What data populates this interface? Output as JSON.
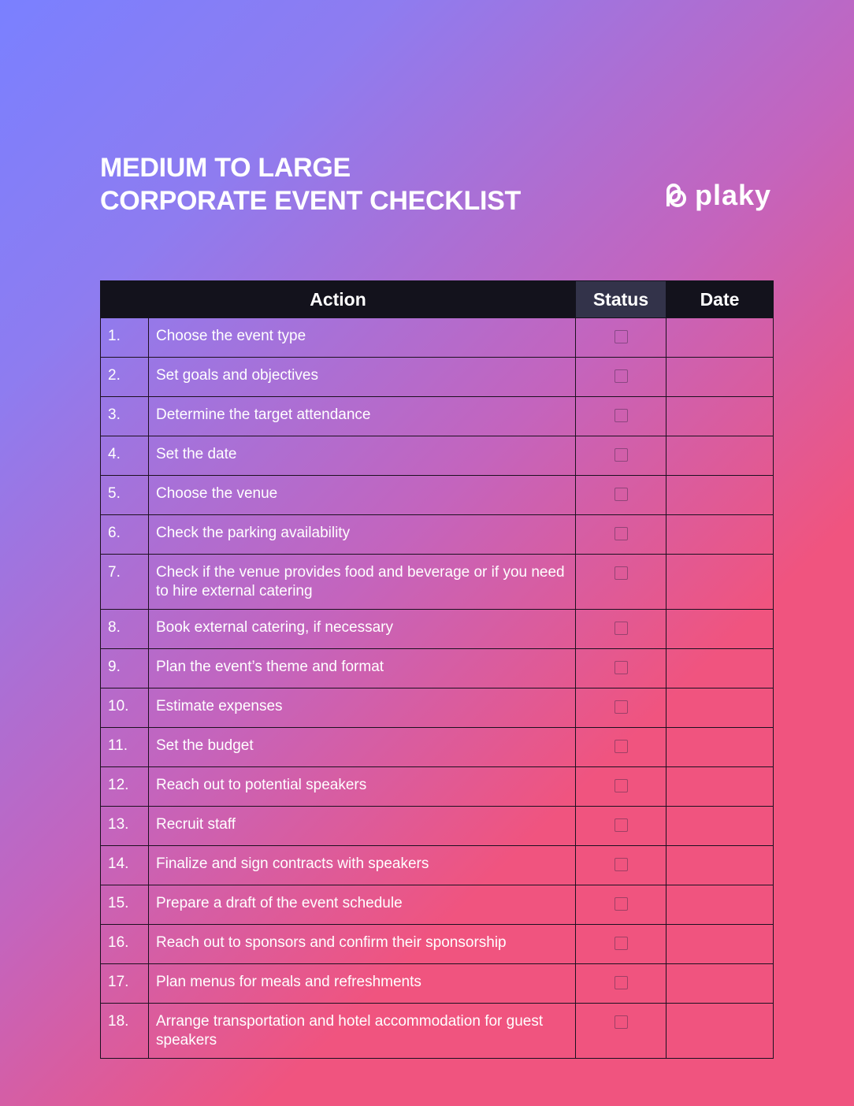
{
  "header": {
    "title_lines": [
      "MEDIUM TO LARGE",
      "CORPORATE EVENT CHECKLIST"
    ],
    "logo": "plaky"
  },
  "table": {
    "columns": [
      "Action",
      "Status",
      "Date"
    ],
    "rows": [
      {
        "number": "1.",
        "action": "Choose the event type"
      },
      {
        "number": "2.",
        "action": "Set goals and objectives"
      },
      {
        "number": "3.",
        "action": "Determine the target attendance"
      },
      {
        "number": "4.",
        "action": "Set the date"
      },
      {
        "number": "5.",
        "action": "Choose the venue"
      },
      {
        "number": "6.",
        "action": "Check the parking availability"
      },
      {
        "number": "7.",
        "action": "Check if the venue provides food and beverage or if you need to hire external catering"
      },
      {
        "number": "8.",
        "action": "Book external catering, if necessary"
      },
      {
        "number": "9.",
        "action": "Plan the event’s theme and format"
      },
      {
        "number": "10.",
        "action": "Estimate expenses"
      },
      {
        "number": "11.",
        "action": "Set the budget"
      },
      {
        "number": "12.",
        "action": "Reach out to potential speakers"
      },
      {
        "number": "13.",
        "action": "Recruit staff"
      },
      {
        "number": "14.",
        "action": "Finalize and sign contracts with speakers"
      },
      {
        "number": "15.",
        "action": "Prepare a draft of the event schedule"
      },
      {
        "number": "16.",
        "action": "Reach out to sponsors and confirm their sponsorship"
      },
      {
        "number": "17.",
        "action": "Plan menus for meals and refreshments"
      },
      {
        "number": "18.",
        "action": "Arrange transportation and hotel accommodation for guest speakers"
      }
    ]
  }
}
